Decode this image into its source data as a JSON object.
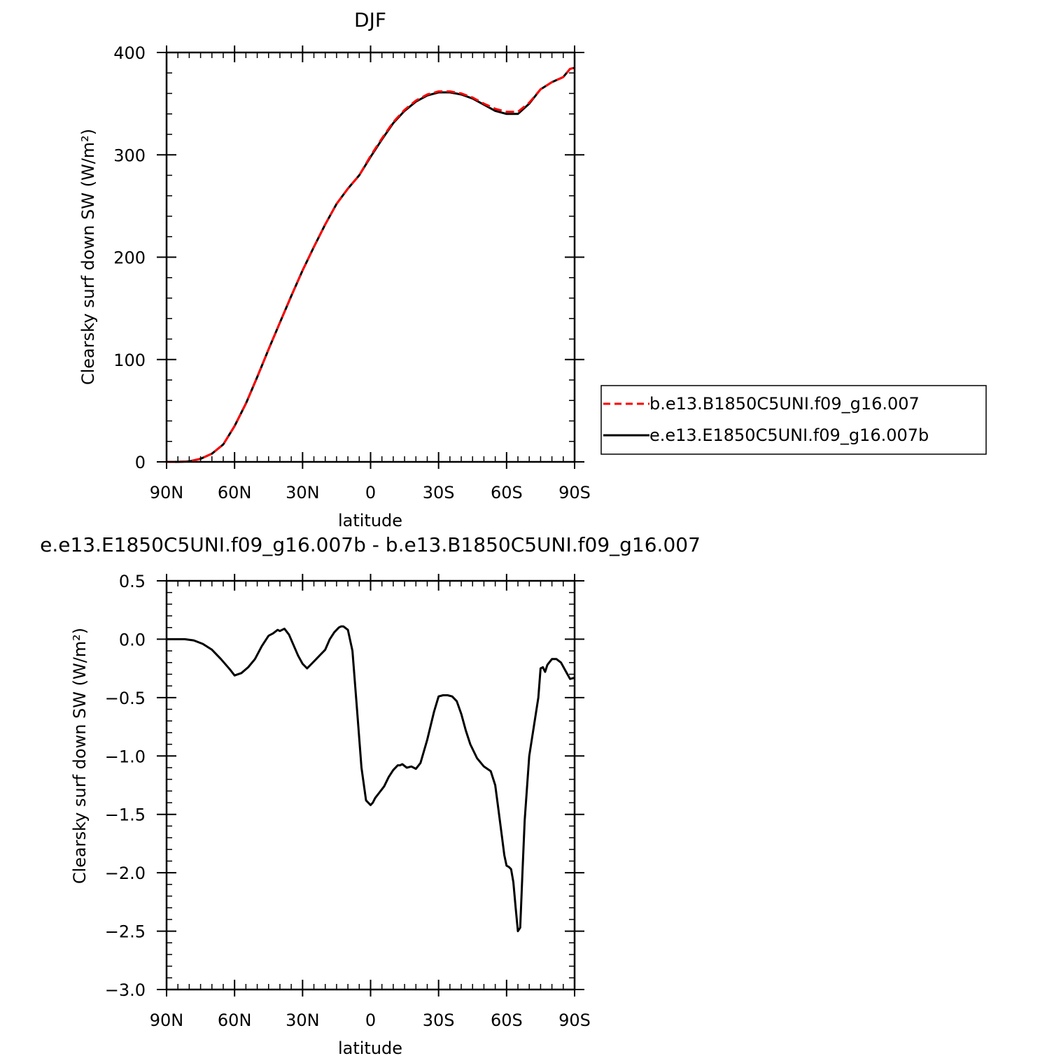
{
  "chart_data": [
    {
      "type": "line",
      "title": "DJF",
      "xlabel": "latitude",
      "ylabel": "Clearsky surf down SW (W/m²)",
      "xlim": [
        90,
        -90
      ],
      "ylim": [
        0,
        400
      ],
      "xticks": [
        90,
        60,
        30,
        0,
        -30,
        -60,
        -90
      ],
      "xtick_labels": [
        "90N",
        "60N",
        "30N",
        "0",
        "30S",
        "60S",
        "90S"
      ],
      "yticks": [
        0,
        100,
        200,
        300,
        400
      ],
      "ytick_labels": [
        "0",
        "100",
        "200",
        "300",
        "400"
      ],
      "grid": false,
      "legend_position": "right",
      "series": [
        {
          "name": "b.e13.B1850C5UNI.f09_g16.007",
          "color": "#ff0000",
          "style": "dashed",
          "x": [
            90,
            85,
            80,
            75,
            70,
            65,
            60,
            55,
            50,
            45,
            40,
            35,
            30,
            25,
            20,
            15,
            10,
            5,
            0,
            -5,
            -10,
            -15,
            -20,
            -25,
            -30,
            -35,
            -40,
            -45,
            -50,
            -55,
            -60,
            -65,
            -70,
            -75,
            -80,
            -85,
            -88,
            -90
          ],
          "y": [
            0,
            0,
            0.5,
            3,
            8,
            17,
            35,
            57,
            83,
            110,
            136,
            162,
            187,
            210,
            232,
            252,
            267,
            280,
            299,
            316,
            332,
            344,
            353,
            359,
            362,
            362,
            360,
            356,
            350,
            345,
            342,
            342,
            351,
            364,
            371,
            376,
            384,
            385
          ]
        },
        {
          "name": "e.e13.E1850C5UNI.f09_g16.007b",
          "color": "#000000",
          "style": "solid",
          "x": [
            90,
            85,
            80,
            75,
            70,
            65,
            60,
            55,
            50,
            45,
            40,
            35,
            30,
            25,
            20,
            15,
            10,
            5,
            0,
            -5,
            -10,
            -15,
            -20,
            -25,
            -30,
            -35,
            -40,
            -45,
            -50,
            -55,
            -60,
            -65,
            -70,
            -75,
            -80,
            -85,
            -88,
            -90
          ],
          "y": [
            0,
            0,
            0.5,
            3,
            8,
            17,
            35,
            57,
            83,
            110,
            136,
            162,
            187,
            210,
            232,
            252,
            267,
            280,
            298,
            315,
            331,
            343,
            352,
            358,
            361,
            361,
            359,
            355,
            349,
            343,
            340,
            340,
            350,
            364,
            371,
            376,
            384,
            385
          ]
        }
      ]
    },
    {
      "type": "line",
      "title": "e.e13.E1850C5UNI.f09_g16.007b - b.e13.B1850C5UNI.f09_g16.007",
      "xlabel": "latitude",
      "ylabel": "Clearsky surf down SW (W/m²)",
      "xlim": [
        90,
        -90
      ],
      "ylim": [
        -3.0,
        0.5
      ],
      "xticks": [
        90,
        60,
        30,
        0,
        -30,
        -60,
        -90
      ],
      "xtick_labels": [
        "90N",
        "60N",
        "30N",
        "0",
        "30S",
        "60S",
        "90S"
      ],
      "yticks": [
        0.5,
        0.0,
        -0.5,
        -1.0,
        -1.5,
        -2.0,
        -2.5,
        -3.0
      ],
      "ytick_labels": [
        "0.5",
        "0.0",
        "−0.5",
        "−1.0",
        "−1.5",
        "−2.0",
        "−2.5",
        "−3.0"
      ],
      "grid": false,
      "series": [
        {
          "color": "#000000",
          "style": "solid",
          "x": [
            90,
            82,
            78,
            74,
            70,
            66,
            62,
            60,
            57,
            54,
            51,
            48,
            45,
            43,
            41,
            40,
            38,
            36,
            34,
            32,
            30,
            28,
            26,
            24,
            22,
            20,
            18,
            16,
            14,
            13,
            12,
            10,
            8,
            6,
            4,
            2,
            0,
            -1,
            -2,
            -4,
            -6,
            -8,
            -10,
            -12,
            -13,
            -14,
            -16,
            -18,
            -20,
            -22,
            -25,
            -28,
            -30,
            -32,
            -34,
            -36,
            -38,
            -40,
            -42,
            -44,
            -47,
            -50,
            -53,
            -55,
            -56,
            -58,
            -59,
            -60,
            -61,
            -62,
            -63,
            -64,
            -65,
            -66,
            -67,
            -68,
            -70,
            -72,
            -74,
            -75,
            -76,
            -77,
            -78,
            -80,
            -82,
            -84,
            -86,
            -88,
            -90
          ],
          "y": [
            0,
            0,
            -0.01,
            -0.04,
            -0.09,
            -0.17,
            -0.26,
            -0.31,
            -0.29,
            -0.24,
            -0.17,
            -0.06,
            0.03,
            0.05,
            0.08,
            0.07,
            0.09,
            0.04,
            -0.05,
            -0.14,
            -0.21,
            -0.25,
            -0.21,
            -0.17,
            -0.13,
            -0.09,
            0.0,
            0.06,
            0.1,
            0.11,
            0.11,
            0.08,
            -0.1,
            -0.6,
            -1.1,
            -1.38,
            -1.42,
            -1.4,
            -1.36,
            -1.31,
            -1.26,
            -1.18,
            -1.12,
            -1.08,
            -1.08,
            -1.07,
            -1.1,
            -1.09,
            -1.11,
            -1.06,
            -0.86,
            -0.62,
            -0.49,
            -0.48,
            -0.48,
            -0.49,
            -0.53,
            -0.64,
            -0.78,
            -0.9,
            -1.02,
            -1.09,
            -1.13,
            -1.25,
            -1.4,
            -1.7,
            -1.85,
            -1.94,
            -1.95,
            -1.97,
            -2.08,
            -2.3,
            -2.5,
            -2.47,
            -2.0,
            -1.55,
            -1.0,
            -0.75,
            -0.5,
            -0.25,
            -0.24,
            -0.28,
            -0.22,
            -0.17,
            -0.17,
            -0.2,
            -0.27,
            -0.34,
            -0.33
          ]
        }
      ]
    }
  ]
}
